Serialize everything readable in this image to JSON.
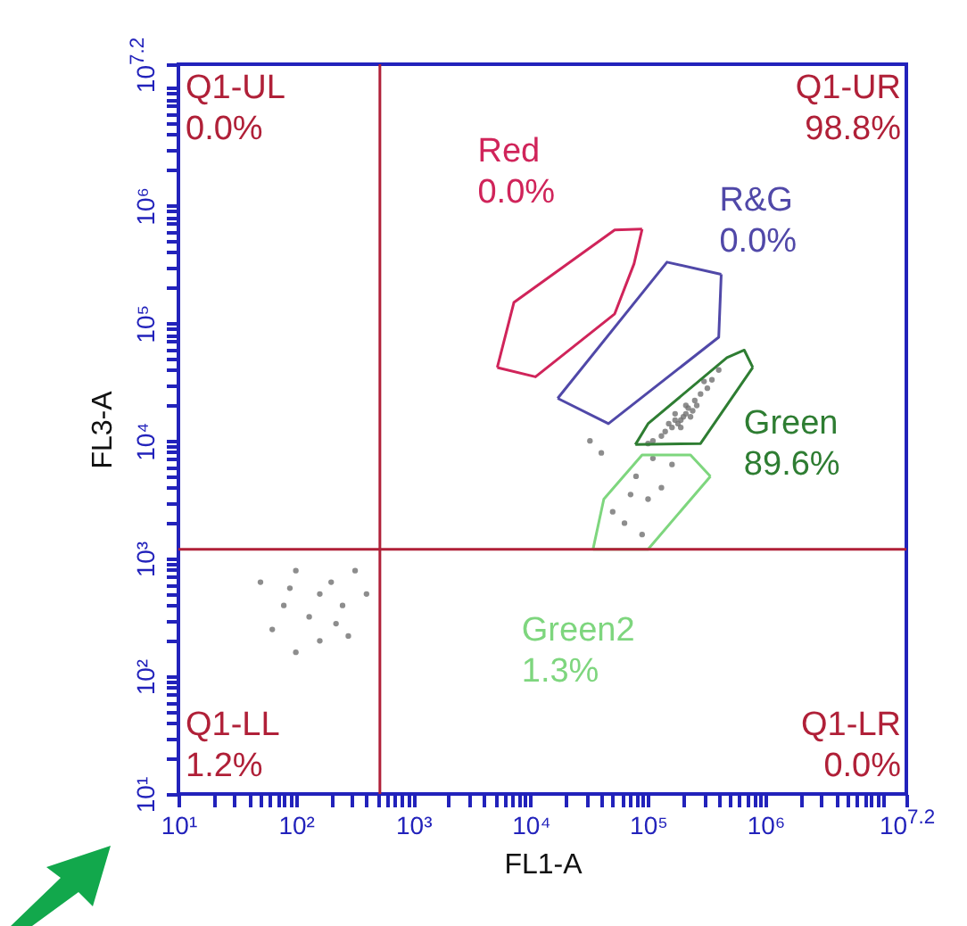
{
  "chart_data": {
    "type": "scatter",
    "xlabel": "FL1-A",
    "ylabel": "FL3-A",
    "log": "xy",
    "grid": false,
    "xlim": [
      10,
      15848932
    ],
    "ylim": [
      10,
      15848932
    ],
    "xticks": [
      {
        "value": 10,
        "label": "10¹"
      },
      {
        "value": 20,
        "label": null
      },
      {
        "value": 30,
        "label": null
      },
      {
        "value": 40,
        "label": null
      },
      {
        "value": 50,
        "label": null
      },
      {
        "value": 60,
        "label": null
      },
      {
        "value": 70,
        "label": null
      },
      {
        "value": 80,
        "label": null
      },
      {
        "value": 90,
        "label": null
      },
      {
        "value": 100,
        "label": "10²"
      },
      {
        "value": 200,
        "label": null
      },
      {
        "value": 300,
        "label": null
      },
      {
        "value": 400,
        "label": null
      },
      {
        "value": 500,
        "label": null
      },
      {
        "value": 600,
        "label": null
      },
      {
        "value": 700,
        "label": null
      },
      {
        "value": 800,
        "label": null
      },
      {
        "value": 900,
        "label": null
      },
      {
        "value": 1000,
        "label": "10³"
      },
      {
        "value": 2000,
        "label": null
      },
      {
        "value": 3000,
        "label": null
      },
      {
        "value": 4000,
        "label": null
      },
      {
        "value": 5000,
        "label": null
      },
      {
        "value": 6000,
        "label": null
      },
      {
        "value": 7000,
        "label": null
      },
      {
        "value": 8000,
        "label": null
      },
      {
        "value": 9000,
        "label": null
      },
      {
        "value": 10000,
        "label": "10⁴"
      },
      {
        "value": 20000,
        "label": null
      },
      {
        "value": 30000,
        "label": null
      },
      {
        "value": 40000,
        "label": null
      },
      {
        "value": 50000,
        "label": null
      },
      {
        "value": 60000,
        "label": null
      },
      {
        "value": 70000,
        "label": null
      },
      {
        "value": 80000,
        "label": null
      },
      {
        "value": 90000,
        "label": null
      },
      {
        "value": 100000,
        "label": "10⁵"
      },
      {
        "value": 200000,
        "label": null
      },
      {
        "value": 300000,
        "label": null
      },
      {
        "value": 400000,
        "label": null
      },
      {
        "value": 500000,
        "label": null
      },
      {
        "value": 600000,
        "label": null
      },
      {
        "value": 700000,
        "label": null
      },
      {
        "value": 800000,
        "label": null
      },
      {
        "value": 900000,
        "label": null
      },
      {
        "value": 1000000,
        "label": "10⁶"
      },
      {
        "value": 2000000,
        "label": null
      },
      {
        "value": 3000000,
        "label": null
      },
      {
        "value": 4000000,
        "label": null
      },
      {
        "value": 5000000,
        "label": null
      },
      {
        "value": 6000000,
        "label": null
      },
      {
        "value": 7000000,
        "label": null
      },
      {
        "value": 8000000,
        "label": null
      },
      {
        "value": 9000000,
        "label": null
      },
      {
        "value": 10000000,
        "label": null
      },
      {
        "value": 15848932,
        "label": "10$^{7.2}$"
      }
    ],
    "yticks": [
      {
        "value": 10,
        "label": "10¹"
      },
      {
        "value": 20,
        "label": null
      },
      {
        "value": 30,
        "label": null
      },
      {
        "value": 40,
        "label": null
      },
      {
        "value": 50,
        "label": null
      },
      {
        "value": 60,
        "label": null
      },
      {
        "value": 70,
        "label": null
      },
      {
        "value": 80,
        "label": null
      },
      {
        "value": 90,
        "label": null
      },
      {
        "value": 100,
        "label": "10²"
      },
      {
        "value": 200,
        "label": null
      },
      {
        "value": 300,
        "label": null
      },
      {
        "value": 400,
        "label": null
      },
      {
        "value": 500,
        "label": null
      },
      {
        "value": 600,
        "label": null
      },
      {
        "value": 700,
        "label": null
      },
      {
        "value": 800,
        "label": null
      },
      {
        "value": 900,
        "label": null
      },
      {
        "value": 1000,
        "label": "10³"
      },
      {
        "value": 2000,
        "label": null
      },
      {
        "value": 3000,
        "label": null
      },
      {
        "value": 4000,
        "label": null
      },
      {
        "value": 5000,
        "label": null
      },
      {
        "value": 6000,
        "label": null
      },
      {
        "value": 7000,
        "label": null
      },
      {
        "value": 8000,
        "label": null
      },
      {
        "value": 9000,
        "label": null
      },
      {
        "value": 10000,
        "label": "10⁴"
      },
      {
        "value": 20000,
        "label": null
      },
      {
        "value": 30000,
        "label": null
      },
      {
        "value": 40000,
        "label": null
      },
      {
        "value": 50000,
        "label": null
      },
      {
        "value": 60000,
        "label": null
      },
      {
        "value": 70000,
        "label": null
      },
      {
        "value": 80000,
        "label": null
      },
      {
        "value": 90000,
        "label": null
      },
      {
        "value": 100000,
        "label": "10⁵"
      },
      {
        "value": 200000,
        "label": null
      },
      {
        "value": 300000,
        "label": null
      },
      {
        "value": 400000,
        "label": null
      },
      {
        "value": 500000,
        "label": null
      },
      {
        "value": 600000,
        "label": null
      },
      {
        "value": 700000,
        "label": null
      },
      {
        "value": 800000,
        "label": null
      },
      {
        "value": 900000,
        "label": null
      },
      {
        "value": 1000000,
        "label": "10⁶"
      },
      {
        "value": 2000000,
        "label": null
      },
      {
        "value": 3000000,
        "label": null
      },
      {
        "value": 4000000,
        "label": null
      },
      {
        "value": 5000000,
        "label": null
      },
      {
        "value": 6000000,
        "label": null
      },
      {
        "value": 7000000,
        "label": null
      },
      {
        "value": 8000000,
        "label": null
      },
      {
        "value": 9000000,
        "label": null
      },
      {
        "value": 10000000,
        "label": null
      },
      {
        "value": 15848932,
        "label": "10$^{7.2}$"
      }
    ],
    "series": [
      {
        "color": "#707070",
        "x": [
          200000,
          210000,
          190000,
          220000,
          180000,
          250000,
          160000,
          280000,
          140000,
          320000,
          130000,
          350000,
          110000,
          240000,
          170000,
          210000,
          190000,
          260000,
          150000,
          300000,
          100000,
          400000,
          230000,
          170000,
          79000,
          100000,
          63000,
          130000,
          50000,
          160000,
          89000,
          110000,
          71000,
          40000,
          32000,
          50,
          79,
          100,
          130,
          160,
          200,
          250,
          320,
          63,
          160,
          400,
          100,
          220,
          89,
          280
        ],
        "values": [
          16000,
          17000,
          15000,
          19000,
          14000,
          22000,
          13000,
          25000,
          12000,
          28000,
          11000,
          33000,
          10000,
          18000,
          15000,
          20000,
          13000,
          20000,
          14000,
          32000,
          9500,
          40000,
          16000,
          17000,
          5000,
          3200,
          2000,
          4000,
          2500,
          6300,
          1600,
          7100,
          3500,
          7900,
          10000,
          630,
          400,
          790,
          320,
          500,
          630,
          400,
          790,
          250,
          200,
          500,
          160,
          280,
          560,
          220
        ]
      },
      {
        "type": "line",
        "name": "Red",
        "color": "#d0245a",
        "x": [
          5200,
          7200,
          52000,
          89000
        ],
        "values": [
          42000,
          150000,
          620000,
          630000
        ]
      },
      {
        "type": "line",
        "color": "#d0245a",
        "x": [
          5200,
          11000,
          52000,
          76000,
          89000
        ],
        "values": [
          42000,
          35000,
          120000,
          320000,
          630000
        ]
      },
      {
        "type": "line",
        "name": "R&G",
        "color": "#5048a8",
        "x": [
          17000,
          145000,
          420000
        ],
        "values": [
          23000,
          330000,
          260000
        ]
      },
      {
        "type": "line",
        "color": "#5048a8",
        "x": [
          17000,
          46000,
          400000,
          420000
        ],
        "values": [
          23000,
          14000,
          76000,
          260000
        ]
      },
      {
        "type": "line",
        "name": "Green",
        "color": "#2e7d32",
        "x": [
          78000,
          100000,
          470000,
          660000,
          780000
        ],
        "values": [
          9300,
          14000,
          51000,
          59000,
          42000
        ]
      },
      {
        "type": "line",
        "color": "#2e7d32",
        "x": [
          78000,
          280000,
          780000
        ],
        "values": [
          9300,
          9500,
          42000
        ]
      },
      {
        "type": "line",
        "name": "Green2",
        "color": "#7ed67e",
        "x": [
          34000,
          42000,
          89000,
          230000,
          340000
        ],
        "values": [
          1200,
          3200,
          7600,
          7600,
          5000
        ]
      },
      {
        "type": "line",
        "color": "#7ed67e",
        "x": [
          34000,
          100000,
          340000
        ],
        "values": [
          1200,
          1200,
          5000
        ]
      }
    ],
    "ref_lines": [
      {
        "axis": "x",
        "value": 520,
        "color": "#b02038"
      },
      {
        "axis": "y",
        "value": 1200,
        "color": "#b02038"
      }
    ],
    "annotations": [
      "Q1-UL",
      "0.0%",
      "Q1-UR",
      "98.8%",
      "Q1-LL",
      "1.2%",
      "Q1-LR",
      "0.0%",
      "0.0%",
      "0.0%",
      "89.6%",
      "1.3%"
    ]
  }
}
